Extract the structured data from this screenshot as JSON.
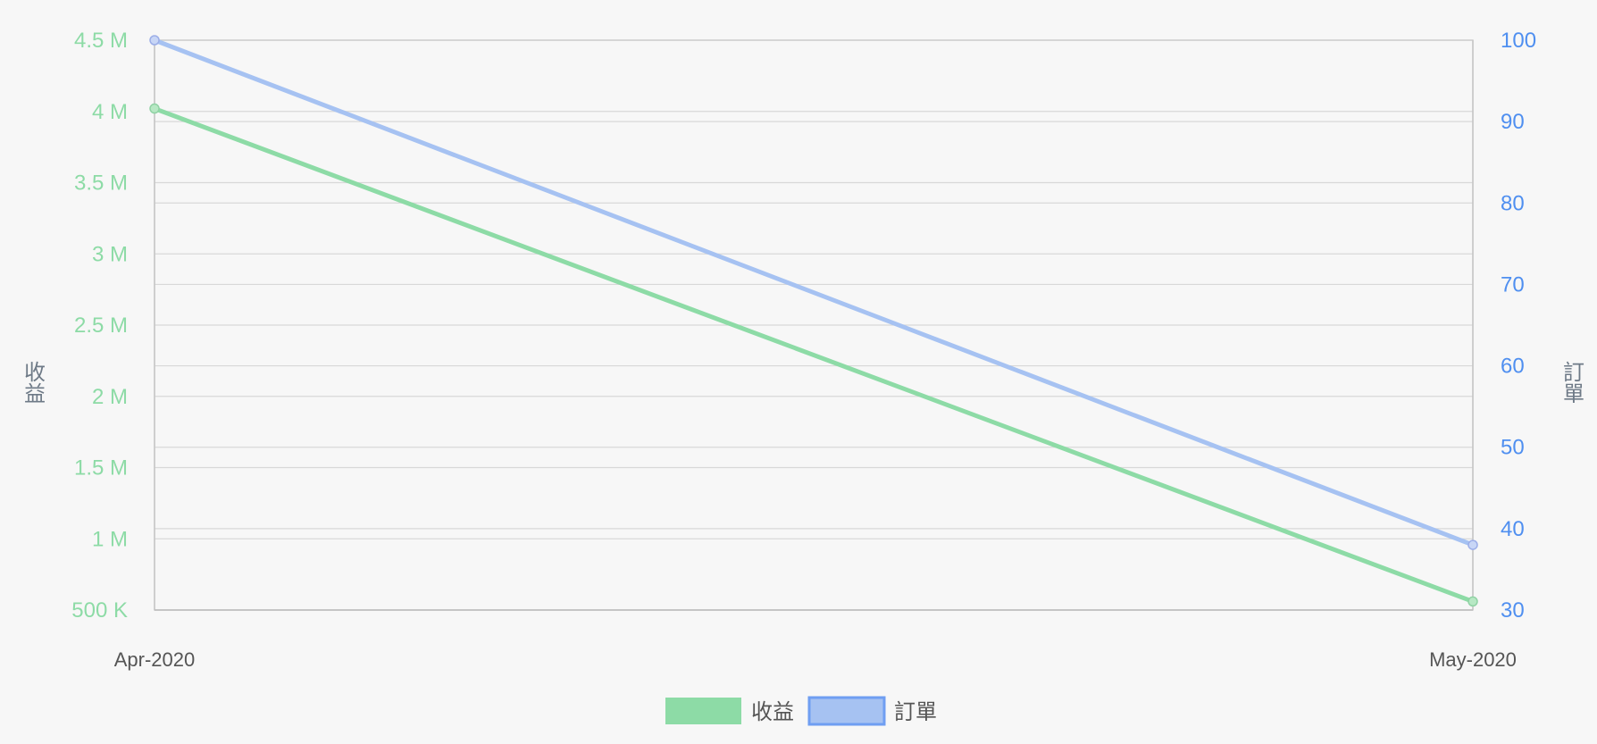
{
  "chart_data": {
    "type": "line",
    "categories": [
      "Apr-2020",
      "May-2020"
    ],
    "series": [
      {
        "name": "收益",
        "axis": "left",
        "values": [
          4020000,
          560000
        ],
        "color": "#8ddba6"
      },
      {
        "name": "訂單",
        "axis": "right",
        "values": [
          100,
          38
        ],
        "color": "#a6c2f2"
      }
    ],
    "y_left": {
      "label": "收益",
      "range": [
        500000,
        4500000
      ],
      "ticks": [
        "500 K",
        "1 M",
        "1.5 M",
        "2 M",
        "2.5 M",
        "3 M",
        "3.5 M",
        "4 M",
        "4.5 M"
      ],
      "tick_color": "#8ddba6"
    },
    "y_right": {
      "label": "訂單",
      "range": [
        30,
        100
      ],
      "ticks": [
        "30",
        "40",
        "50",
        "60",
        "70",
        "80",
        "90",
        "100"
      ],
      "tick_color": "#4f8ff0"
    },
    "grid": true,
    "legend_position": "bottom-center",
    "colors": {
      "background": "#f7f7f7",
      "grid": "#d8d8d8",
      "axis_label": "#6e7a87",
      "category_label": "#555555",
      "legend_text": "#555555",
      "right_legend_border": "#6f9ef2"
    }
  }
}
